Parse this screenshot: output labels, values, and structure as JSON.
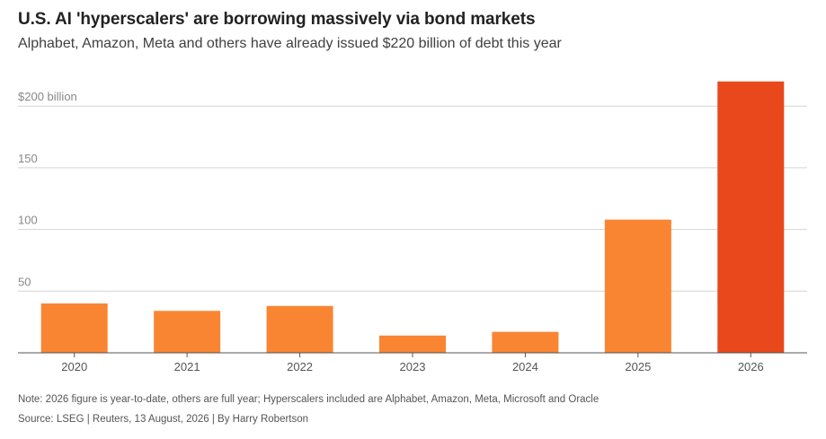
{
  "title": "U.S. AI 'hyperscalers' are borrowing massively via bond markets",
  "subtitle": "Alphabet, Amazon, Meta and others have already issued $220 billion of debt this year",
  "note": "Note: 2026 figure is year-to-date, others are full year; Hyperscalers included are Alphabet, Amazon, Meta, Microsoft and Oracle",
  "source": "Source: LSEG | Reuters, 13 August, 2026 | By Harry Robertson",
  "colors": {
    "bar": "#f98533",
    "highlight": "#e8481c",
    "grid": "#d4d4d4",
    "axis": "#555555"
  },
  "chart_data": {
    "type": "bar",
    "title": "U.S. AI 'hyperscalers' are borrowing massively via bond markets",
    "subtitle": "Alphabet, Amazon, Meta and others have already issued $220 billion of debt this year",
    "categories": [
      "2020",
      "2021",
      "2022",
      "2023",
      "2024",
      "2025",
      "2026"
    ],
    "values": [
      40,
      34,
      38,
      14,
      17,
      108,
      220
    ],
    "highlight_index": 6,
    "ylim": [
      0,
      200
    ],
    "yticks": [
      50,
      100,
      150,
      200
    ],
    "ytick_labels": [
      "50",
      "100",
      "150",
      "$200 billion"
    ],
    "grid": true,
    "xlabel": "",
    "ylabel": ""
  }
}
